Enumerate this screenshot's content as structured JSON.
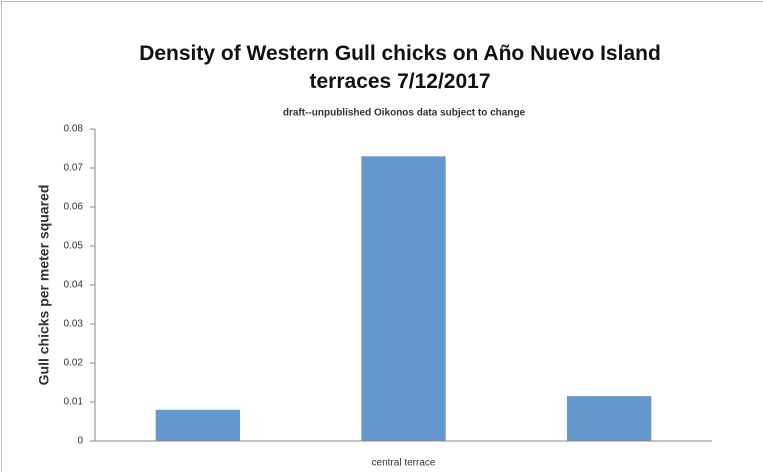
{
  "chart_data": {
    "type": "bar",
    "title": "Density of Western Gull chicks on Año Nuevo Island terraces 7/12/2017",
    "subtitle": "draft--unpublished Oikonos data subject to change",
    "y_label": "Gull chicks per meter squared",
    "categories": [
      null,
      "central terrace",
      null
    ],
    "values": [
      0.008,
      0.073,
      0.0115
    ],
    "color": "#6497cd",
    "ylim": [
      0,
      0.08
    ],
    "yticks": [
      0,
      0.01,
      0.02,
      0.03,
      0.04,
      0.05,
      0.06,
      0.07,
      0.08
    ],
    "grid": false
  }
}
